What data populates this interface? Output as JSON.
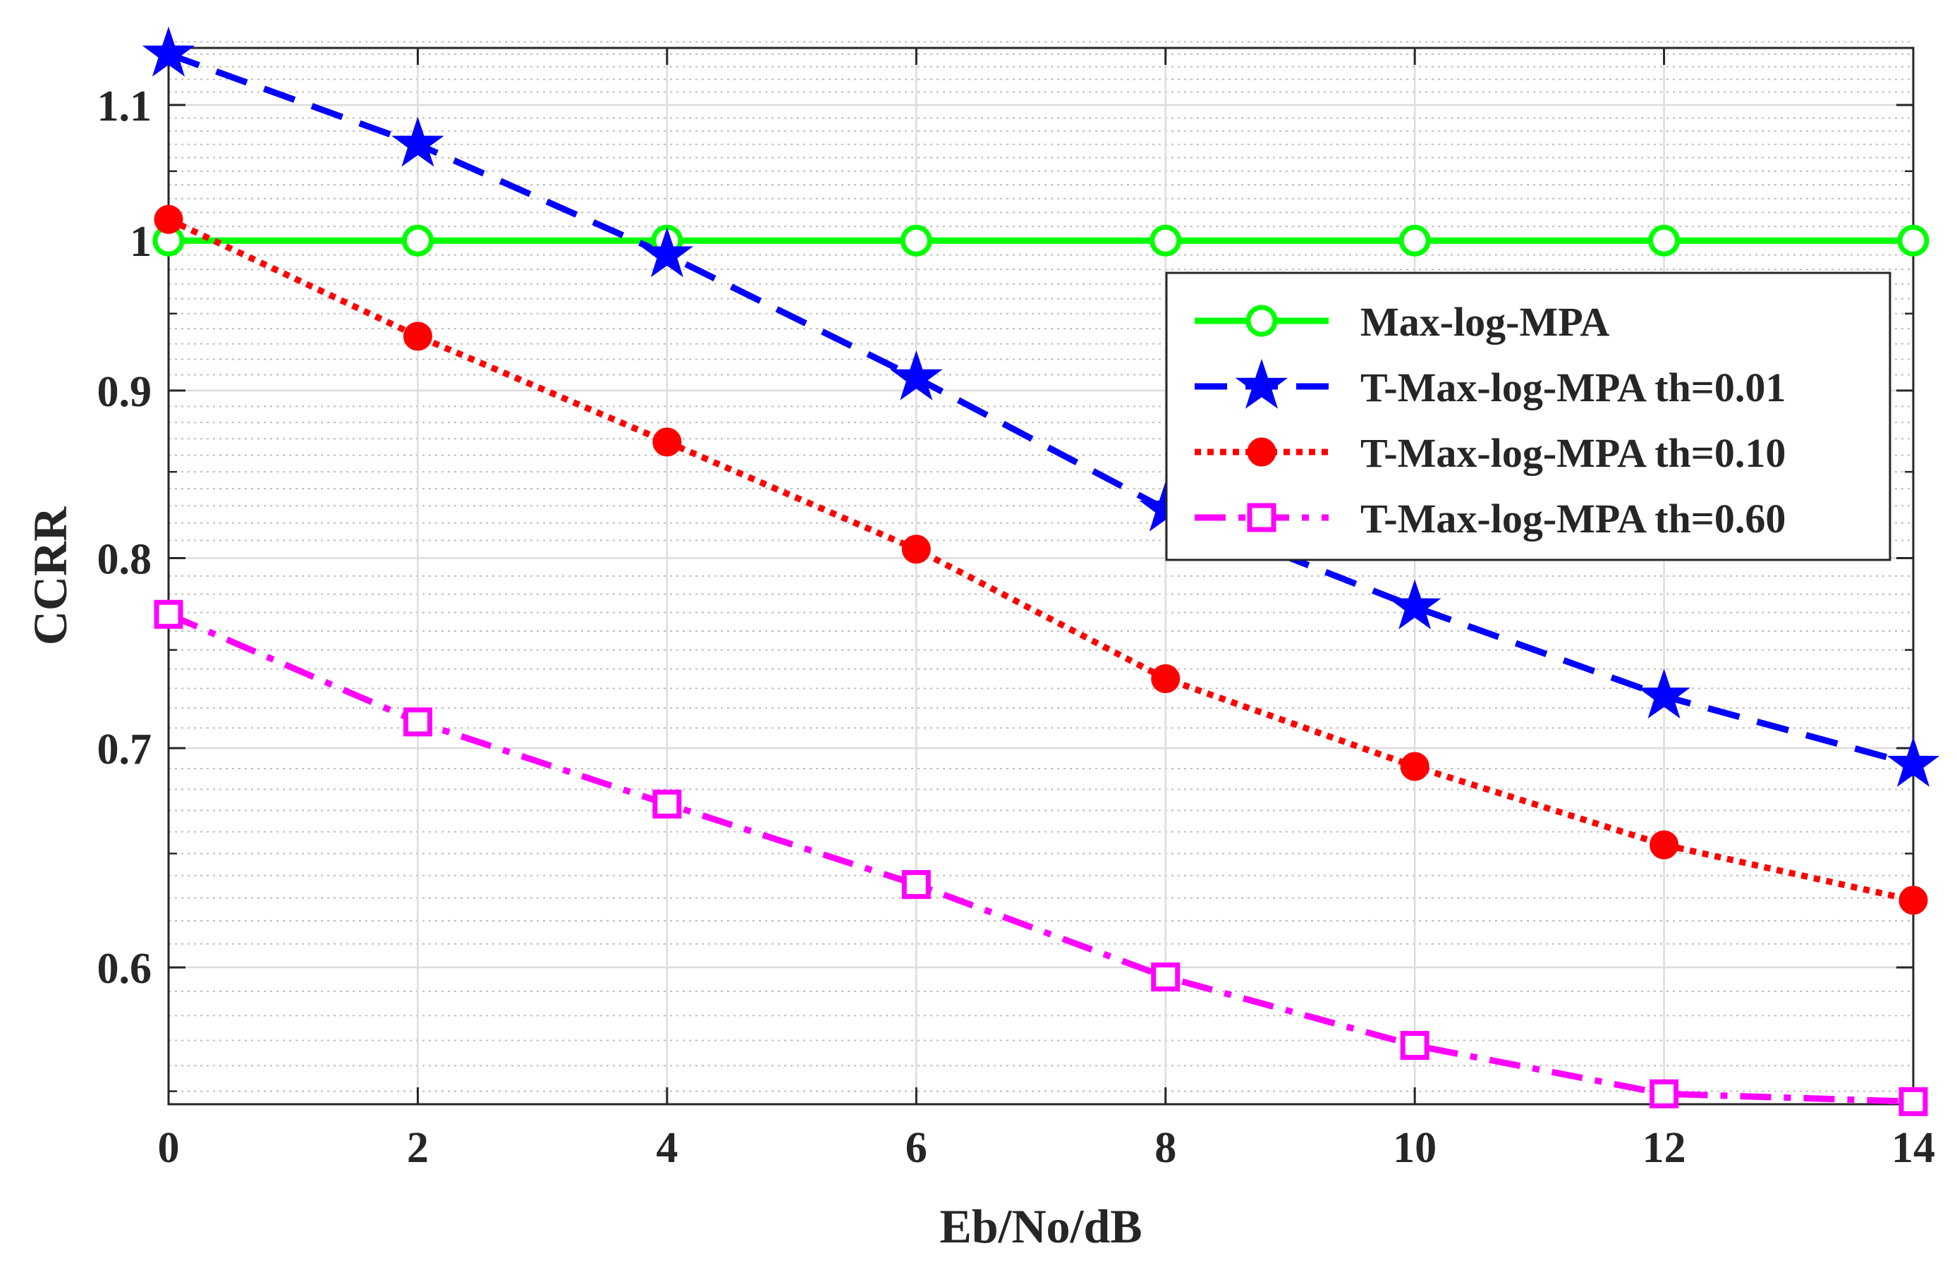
{
  "chart_data": {
    "type": "line",
    "title": "",
    "xlabel": "Eb/No/dB",
    "ylabel": "CCRR",
    "yscale": "log",
    "xlim": [
      0,
      14
    ],
    "ylim": [
      0.545,
      1.145
    ],
    "x_ticks": [
      0,
      2,
      4,
      6,
      8,
      10,
      12,
      14
    ],
    "x_tick_labels": [
      "0",
      "2",
      "4",
      "6",
      "8",
      "10",
      "12",
      "14"
    ],
    "y_ticks": [
      0.6,
      0.7,
      0.8,
      0.9,
      1.0,
      1.1
    ],
    "y_tick_labels": [
      "0.6",
      "0.7",
      "0.8",
      "0.9",
      "1",
      "1.1"
    ],
    "y_minor_ticks": [
      0.55,
      0.65,
      0.75,
      0.85,
      0.95,
      1.05
    ],
    "grid": true,
    "legend_position": "upper-right",
    "x": [
      0,
      2,
      4,
      6,
      8,
      10,
      12,
      14
    ],
    "series": [
      {
        "name": "Max-log-MPA",
        "color": "#00ff00",
        "line": "solid",
        "marker": "circle",
        "values": [
          1.0,
          1.0,
          1.0,
          1.0,
          1.0,
          1.0,
          1.0,
          1.0
        ]
      },
      {
        "name": "T-Max-log-MPA th=0.01",
        "color": "#0000ff",
        "line": "dashed",
        "marker": "star",
        "values": [
          1.14,
          1.07,
          0.99,
          0.908,
          0.828,
          0.773,
          0.726,
          0.692
        ]
      },
      {
        "name": "T-Max-log-MPA th=0.10",
        "color": "#ff0000",
        "line": "dotted",
        "marker": "filled-circle",
        "values": [
          1.015,
          0.935,
          0.868,
          0.805,
          0.735,
          0.691,
          0.654,
          0.629
        ]
      },
      {
        "name": "T-Max-log-MPA th=0.60",
        "color": "#ff00ff",
        "line": "dashdot",
        "marker": "square",
        "values": [
          0.769,
          0.713,
          0.673,
          0.636,
          0.596,
          0.568,
          0.549,
          0.546
        ]
      }
    ]
  }
}
